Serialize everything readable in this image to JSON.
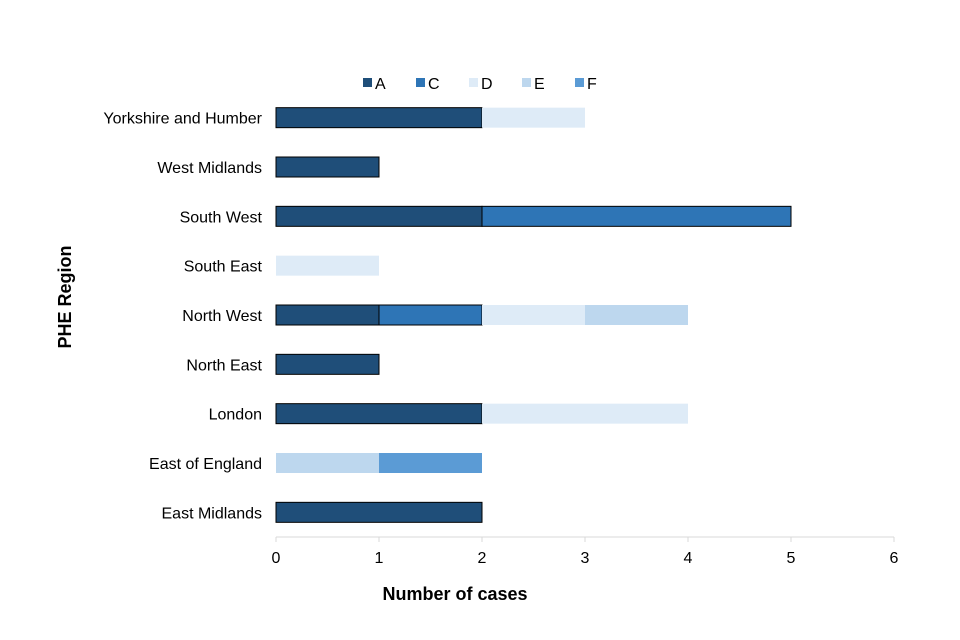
{
  "chart_data": {
    "type": "bar",
    "orientation": "horizontal",
    "stacked": true,
    "title": "",
    "xlabel": "Number of cases",
    "ylabel": "PHE Region",
    "xlim": [
      0,
      6
    ],
    "xticks": [
      0,
      1,
      2,
      3,
      4,
      5,
      6
    ],
    "grid": false,
    "legend_position": "top",
    "categories": [
      "Yorkshire and Humber",
      "West Midlands",
      "South West",
      "South East",
      "North West",
      "North East",
      "London",
      "East of England",
      "East Midlands"
    ],
    "series": [
      {
        "name": "A",
        "color": "#1f4e79",
        "values": [
          2,
          1,
          2,
          0,
          1,
          1,
          2,
          0,
          2
        ]
      },
      {
        "name": "C",
        "color": "#2e75b6",
        "values": [
          0,
          0,
          3,
          0,
          1,
          0,
          0,
          0,
          0
        ]
      },
      {
        "name": "D",
        "color": "#deebf7",
        "values": [
          1,
          0,
          0,
          1,
          1,
          0,
          2,
          0,
          0
        ]
      },
      {
        "name": "E",
        "color": "#bdd7ee",
        "values": [
          0,
          0,
          0,
          0,
          1,
          0,
          0,
          1,
          0
        ]
      },
      {
        "name": "F",
        "color": "#5b9bd5",
        "values": [
          0,
          0,
          0,
          0,
          0,
          0,
          0,
          1,
          0
        ]
      }
    ]
  }
}
